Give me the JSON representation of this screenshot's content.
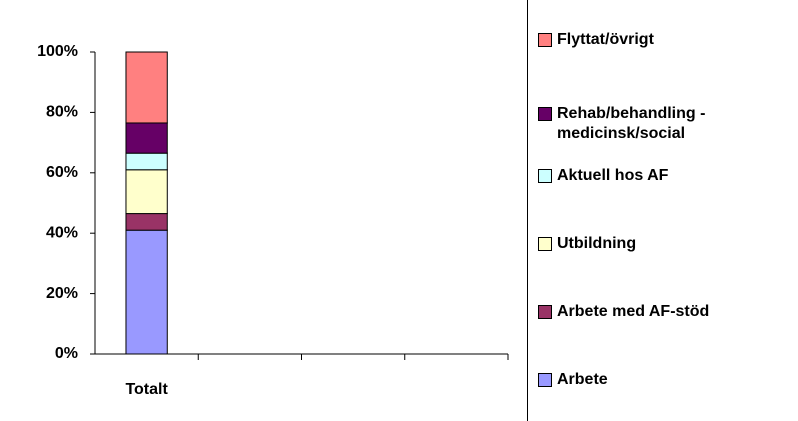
{
  "chart_data": {
    "type": "bar",
    "stacked": true,
    "categories": [
      "Totalt",
      null,
      null,
      null
    ],
    "series": [
      {
        "name": "Arbete",
        "color": "#9999ff",
        "values": [
          41,
          null,
          null,
          null
        ]
      },
      {
        "name": "Arbete med AF-stöd",
        "color": "#993366",
        "values": [
          5.5,
          null,
          null,
          null
        ]
      },
      {
        "name": "Utbildning",
        "color": "#ffffcc",
        "values": [
          14.5,
          null,
          null,
          null
        ]
      },
      {
        "name": "Aktuell hos AF",
        "color": "#ccffff",
        "values": [
          5.5,
          null,
          null,
          null
        ]
      },
      {
        "name": "Rehab/behandling - medicinsk/social",
        "color": "#660066",
        "values": [
          10,
          null,
          null,
          null
        ]
      },
      {
        "name": "Flyttat/övrigt",
        "color": "#ff8080",
        "values": [
          23.5,
          null,
          null,
          null
        ]
      }
    ],
    "ylim": [
      0,
      100
    ],
    "yticks": [
      {
        "value": 0,
        "label": "0%"
      },
      {
        "value": 20,
        "label": "20%"
      },
      {
        "value": 40,
        "label": "40%"
      },
      {
        "value": 60,
        "label": "60%"
      },
      {
        "value": 80,
        "label": "80%"
      },
      {
        "value": 100,
        "label": "100%"
      }
    ],
    "legend": "right"
  }
}
